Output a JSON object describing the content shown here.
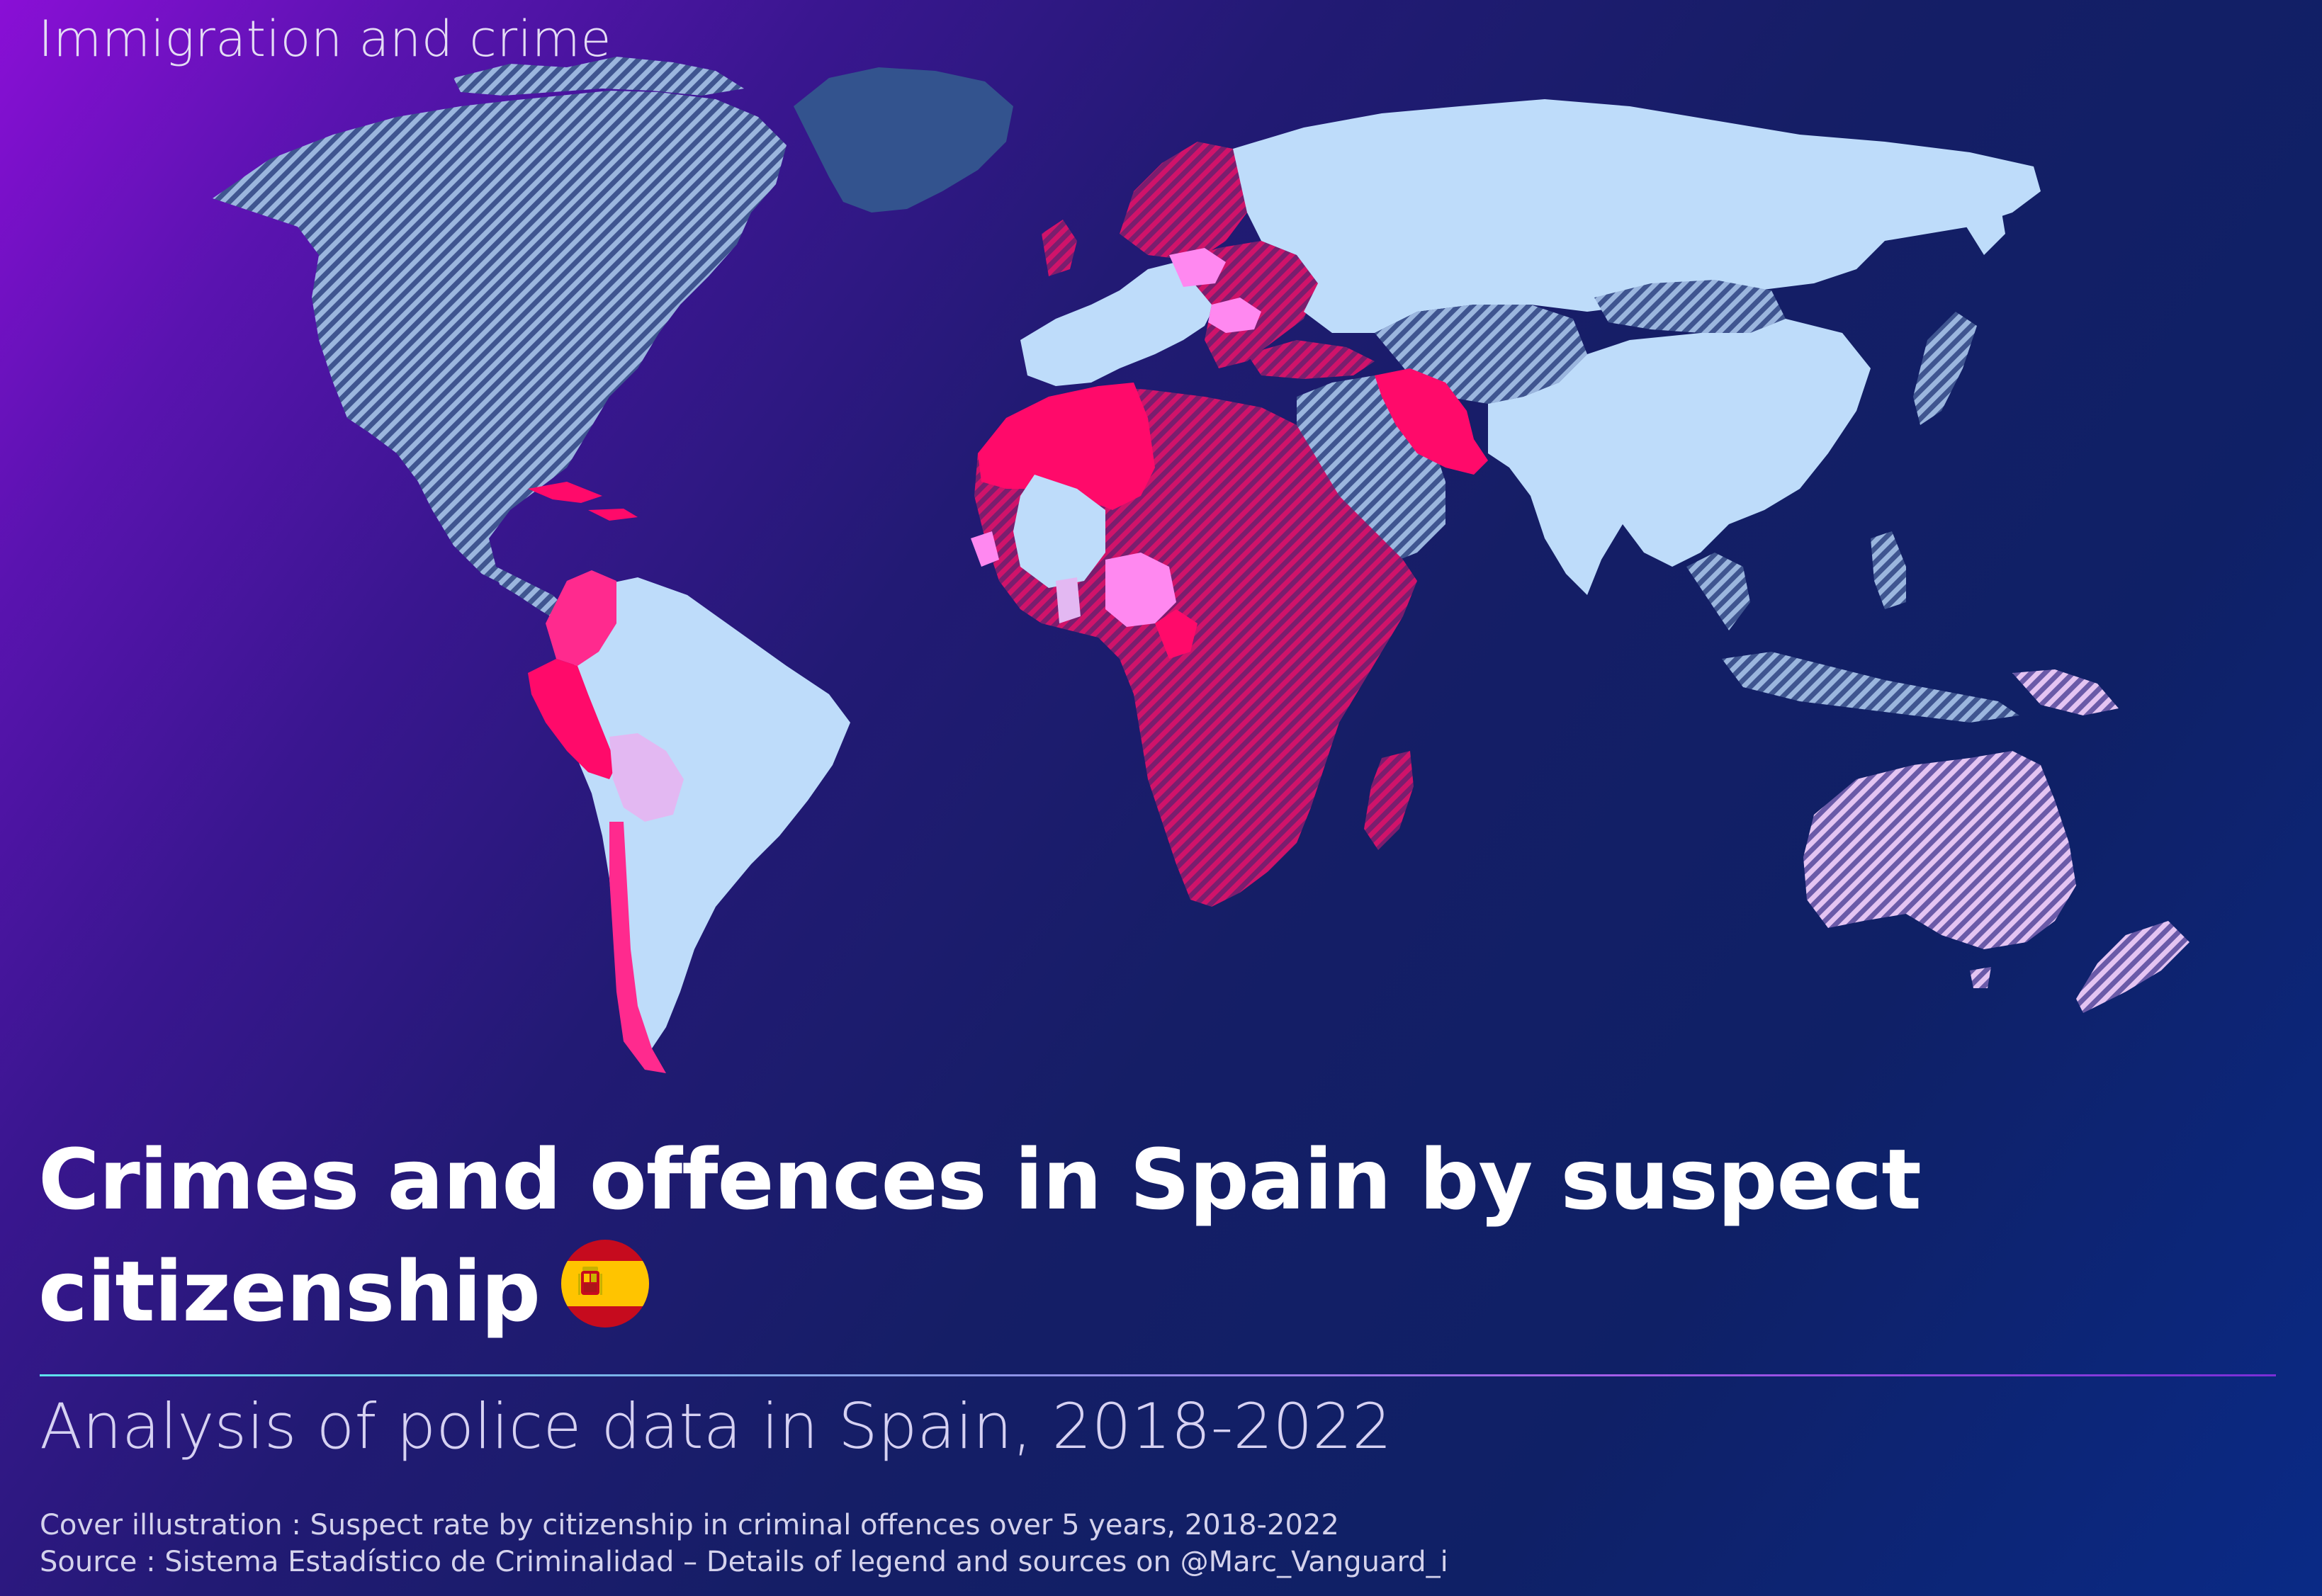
{
  "header": {
    "kicker": "Immigration and crime"
  },
  "title": {
    "line1": "Crimes and offences in Spain by suspect",
    "line2": "citizenship"
  },
  "flag_icon": "spain-flag-icon",
  "subtitle": "Analysis of police data in Spain, 2018-2022",
  "captions": {
    "cover": "Cover illustration : Suspect rate by citizenship in criminal offences over 5 years, 2018-2022",
    "source": "Source : Sistema Estadístico de Criminalidad – Details of legend and sources on @Marc_Vanguard_i"
  },
  "colors": {
    "background_start": "#8a0fd6",
    "background_end": "#0a2a86",
    "light_blue": "#bedcfa",
    "hatched_blue": "#7f9bc6",
    "greenland_blue": "#33538e",
    "magenta_hatched": "#b3195f",
    "hot_pink": "#ff0a6a",
    "pink": "#ff2a8e",
    "light_pink": "#ff88f0",
    "lavender": "#e3b8f2"
  },
  "map": {
    "regions": [
      {
        "name": "North America",
        "fill": "hatched-blue"
      },
      {
        "name": "Greenland",
        "fill": "greenland-blue"
      },
      {
        "name": "Caribbean",
        "fill": "hot-pink"
      },
      {
        "name": "Colombia",
        "fill": "pink"
      },
      {
        "name": "Peru",
        "fill": "hot-pink"
      },
      {
        "name": "Bolivia",
        "fill": "lavender"
      },
      {
        "name": "Brazil and rest of South America",
        "fill": "light-blue"
      },
      {
        "name": "Western Europe",
        "fill": "light-blue"
      },
      {
        "name": "Eastern Europe",
        "fill": "magenta-hatched"
      },
      {
        "name": "Russia and Northern Asia",
        "fill": "light-blue"
      },
      {
        "name": "Central Asia and Middle East",
        "fill": "hatched-blue"
      },
      {
        "name": "Iran",
        "fill": "hot-pink"
      },
      {
        "name": "Maghreb",
        "fill": "hot-pink"
      },
      {
        "name": "Mali",
        "fill": "light-blue"
      },
      {
        "name": "Nigeria",
        "fill": "light-pink"
      },
      {
        "name": "Sub-Saharan Africa",
        "fill": "magenta-hatched"
      },
      {
        "name": "South and East Asia",
        "fill": "light-blue"
      },
      {
        "name": "Southeast Asia islands",
        "fill": "hatched-blue"
      },
      {
        "name": "Australia and New Zealand",
        "fill": "lavender-hatched"
      }
    ]
  }
}
